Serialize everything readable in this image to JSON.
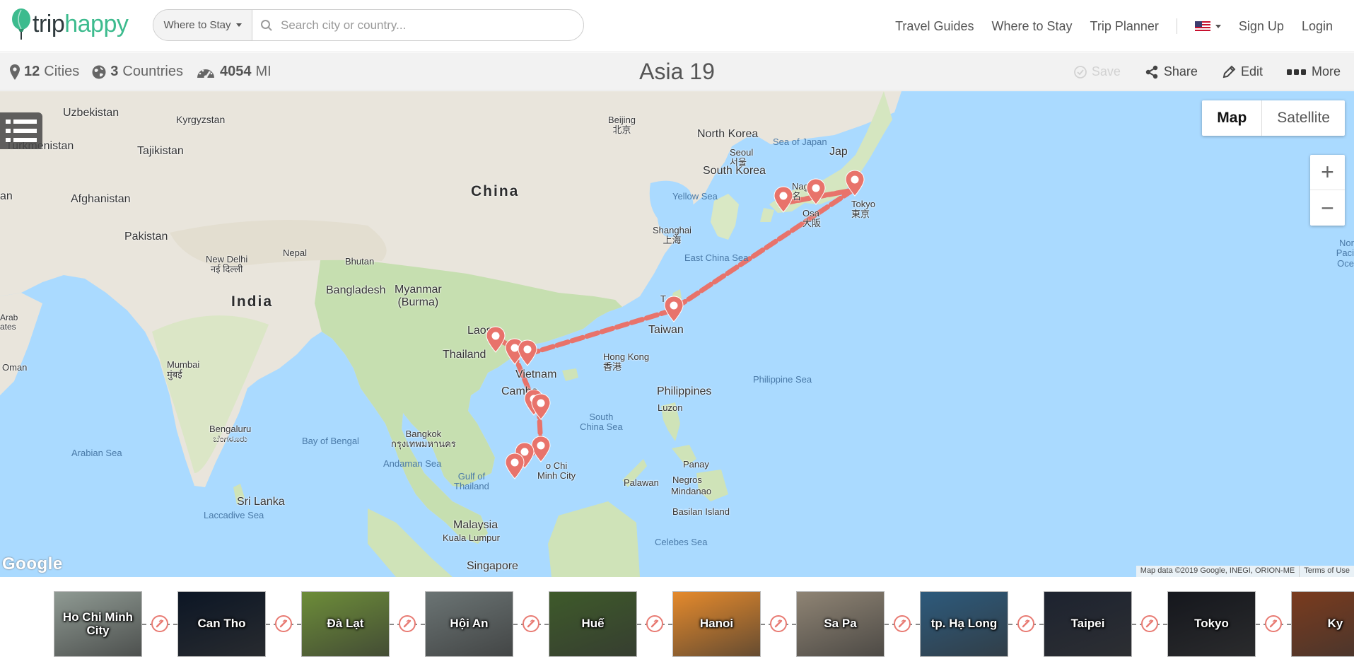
{
  "brand": {
    "word_a": "trip",
    "word_b": "happy",
    "accent": "#3dbb8e",
    "dark": "#2f3a3d"
  },
  "search": {
    "dropdown_label": "Where to Stay",
    "placeholder": "Search city or country...",
    "value": ""
  },
  "nav": {
    "links": [
      "Travel Guides",
      "Where to Stay",
      "Trip Planner"
    ],
    "flag": "us-flag-icon",
    "sign_up": "Sign Up",
    "login": "Login"
  },
  "trip": {
    "cities_count": "12",
    "cities_label": "Cities",
    "countries_count": "3",
    "countries_label": "Countries",
    "distance": "4054",
    "distance_unit": "MI",
    "title": "Asia 19"
  },
  "actions": {
    "save": "Save",
    "share": "Share",
    "edit": "Edit",
    "more": "More"
  },
  "map": {
    "type_map": "Map",
    "type_satellite": "Satellite",
    "zoom_in": "+",
    "zoom_out": "−",
    "google": "Google",
    "attribution": "Map data ©2019 Google, INEGI, ORION-ME",
    "terms": "Terms of Use",
    "route_color": "#e8736b",
    "labels": {
      "uzbekistan": "Uzbekistan",
      "kyrgyzstan": "Kyrgyzstan",
      "turkmenistan": "Turkmenistan",
      "tajikistan": "Tajikistan",
      "afghanistan": "Afghanistan",
      "pakistan": "Pakistan",
      "nepal": "Nepal",
      "bhutan": "Bhutan",
      "bangladesh": "Bangladesh",
      "india": "India",
      "china": "China",
      "north_korea": "North Korea",
      "south_korea": "South Korea",
      "japan": "Jap",
      "myanmar": "Myanmar\n(Burma)",
      "laos": "Laos",
      "thailand": "Thailand",
      "vietnam": "Vietnam",
      "cambodia": "Cambo",
      "taiwan": "Taiwan",
      "philippines": "Philippines",
      "malaysia": "Malaysia",
      "singapore": "Singapore",
      "sri_lanka": "Sri Lanka",
      "oman": "Oman",
      "arab": "Arab\nates",
      "an": "an",
      "sea_japan": "Sea of Japan",
      "yellow_sea": "Yellow Sea",
      "east_china_sea": "East China Sea",
      "philippine_sea": "Philippine Sea",
      "south_china_sea": "South\nChina Sea",
      "bay_bengal": "Bay of Bengal",
      "arabian_sea": "Arabian Sea",
      "andaman_sea": "Andaman Sea",
      "gulf_thailand": "Gulf of\nThailand",
      "laccadive_sea": "Laccadive Sea",
      "celebes_sea": "Celebes Sea",
      "north_pacific": "Nor\nPaci\nOce",
      "beijing": "Beijing\n北京",
      "seoul": "Seoul\n서울",
      "shanghai": "Shanghai\n上海",
      "hong_kong": "Hong Kong\n香港",
      "new_delhi": "New Delhi\nनई दिल्ली",
      "mumbai": "Mumbai\nमुंबई",
      "bengaluru": "Bengaluru\nಬೆಂಗಳೂರು",
      "bangkok": "Bangkok\nกรุงเทพมหานคร",
      "kuala_lumpur": "Kuala Lumpur",
      "tokyo": "Tokyo\n東京",
      "osaka": "Osa\n大阪",
      "nagoya": "Nag\n名",
      "hcmc": "o Chi\nMinh City",
      "taipei": "T",
      "luzon": "Luzon",
      "panay": "Panay",
      "negros": "Negros",
      "mindanao": "Mindanao",
      "palawan": "Palawan",
      "basilan": "Basilan Island"
    }
  },
  "itinerary": [
    {
      "name": "Ho Chi Minh City",
      "bg": "#8f9a93"
    },
    {
      "name": "Can Tho",
      "bg": "#0c1625"
    },
    {
      "name": "Đà Lạt",
      "bg": "#6d8d39"
    },
    {
      "name": "Hội An",
      "bg": "#6b7474"
    },
    {
      "name": "Huế",
      "bg": "#3e5a2a"
    },
    {
      "name": "Hanoi",
      "bg": "#e58a2c"
    },
    {
      "name": "Sa Pa",
      "bg": "#8f8474"
    },
    {
      "name": "tp. Hạ Long",
      "bg": "#2d5a7c"
    },
    {
      "name": "Taipei",
      "bg": "#1d2330"
    },
    {
      "name": "Tokyo",
      "bg": "#15171d"
    },
    {
      "name": "Ky",
      "bg": "#7a3b1e"
    }
  ]
}
